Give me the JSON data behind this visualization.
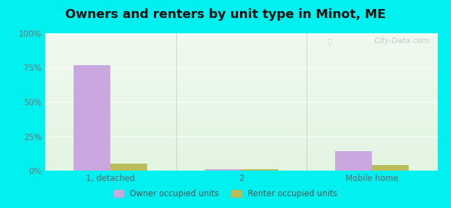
{
  "title": "Owners and renters by unit type in Minot, ME",
  "categories": [
    "1, detached",
    "2",
    "Mobile home"
  ],
  "owner_values": [
    77,
    1,
    14
  ],
  "renter_values": [
    5,
    1,
    4
  ],
  "owner_color": "#c9a8e0",
  "renter_color": "#b8bc5a",
  "bar_width": 0.28,
  "ylim": [
    0,
    100
  ],
  "yticks": [
    0,
    25,
    50,
    75,
    100
  ],
  "ytick_labels": [
    "0%",
    "25%",
    "50%",
    "75%",
    "100%"
  ],
  "outer_background": "#00efef",
  "title_fontsize": 13,
  "legend_labels": [
    "Owner occupied units",
    "Renter occupied units"
  ],
  "watermark": "City-Data.com",
  "divider_color": "#bbbbbb"
}
